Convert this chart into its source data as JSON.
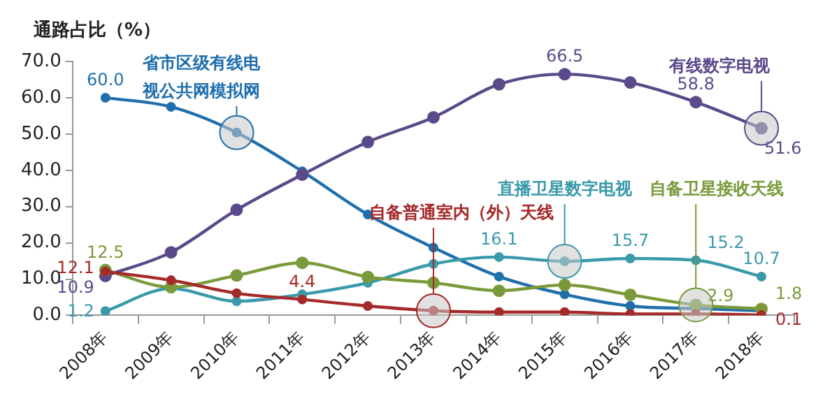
{
  "chart_data": {
    "type": "line",
    "ylabel": "通路占比（%）",
    "categories": [
      "2008年",
      "2009年",
      "2010年",
      "2011年",
      "2012年",
      "2013年",
      "2014年",
      "2015年",
      "2016年",
      "2017年",
      "2018年"
    ],
    "ylim": [
      0,
      70
    ],
    "yticks": [
      {
        "value": 0,
        "label": "0.0"
      },
      {
        "value": 10,
        "label": "10.0"
      },
      {
        "value": 20,
        "label": "20.0"
      },
      {
        "value": 30,
        "label": "30.0"
      },
      {
        "value": 40,
        "label": "40.0"
      },
      {
        "value": 50,
        "label": "50.0"
      },
      {
        "value": 60,
        "label": "60.0"
      },
      {
        "value": 70,
        "label": "70.0"
      }
    ],
    "grid": false,
    "legend": false,
    "marker": "circle",
    "line_style": "solid",
    "series": [
      {
        "name": "省市区级有线电视公共网模拟网",
        "color": "#1f6fad",
        "values": [
          60.0,
          57.5,
          50.4,
          39.7,
          27.8,
          18.7,
          10.7,
          5.8,
          2.6,
          1.9,
          1.3
        ],
        "value_labels": [
          "60.0",
          null,
          null,
          null,
          null,
          null,
          null,
          null,
          null,
          null,
          null
        ]
      },
      {
        "name": "有线数字电视",
        "color": "#5a4a8a",
        "values": [
          10.9,
          17.4,
          29.1,
          38.8,
          47.8,
          54.6,
          63.7,
          66.5,
          64.2,
          58.8,
          51.6
        ],
        "value_labels": [
          "10.9",
          null,
          null,
          null,
          null,
          null,
          null,
          "66.5",
          null,
          "58.8",
          "51.6"
        ]
      },
      {
        "name": "直播卫星数字电视",
        "color": "#3a9aaa",
        "values": [
          1.2,
          7.4,
          3.9,
          5.8,
          9.0,
          14.2,
          16.1,
          14.9,
          15.7,
          15.2,
          10.7
        ],
        "value_labels": [
          "1.2",
          null,
          null,
          null,
          null,
          null,
          "16.1",
          null,
          "15.7",
          "15.2",
          "10.7"
        ]
      },
      {
        "name": "自备卫星接收天线",
        "color": "#7a9a3a",
        "values": [
          12.5,
          7.8,
          11.0,
          14.5,
          10.6,
          9.0,
          6.8,
          8.4,
          5.7,
          2.9,
          1.8
        ],
        "value_labels": [
          "12.5",
          null,
          null,
          null,
          null,
          null,
          null,
          null,
          null,
          "2.9",
          "1.8"
        ]
      },
      {
        "name": "自备普通室内（外）天线",
        "color": "#a52a2a",
        "values": [
          12.1,
          9.7,
          6.1,
          4.4,
          2.6,
          1.3,
          0.9,
          0.9,
          0.4,
          0.4,
          0.1
        ],
        "value_labels": [
          "12.1",
          null,
          null,
          "4.4",
          null,
          null,
          null,
          null,
          null,
          null,
          "0.1"
        ]
      }
    ]
  }
}
